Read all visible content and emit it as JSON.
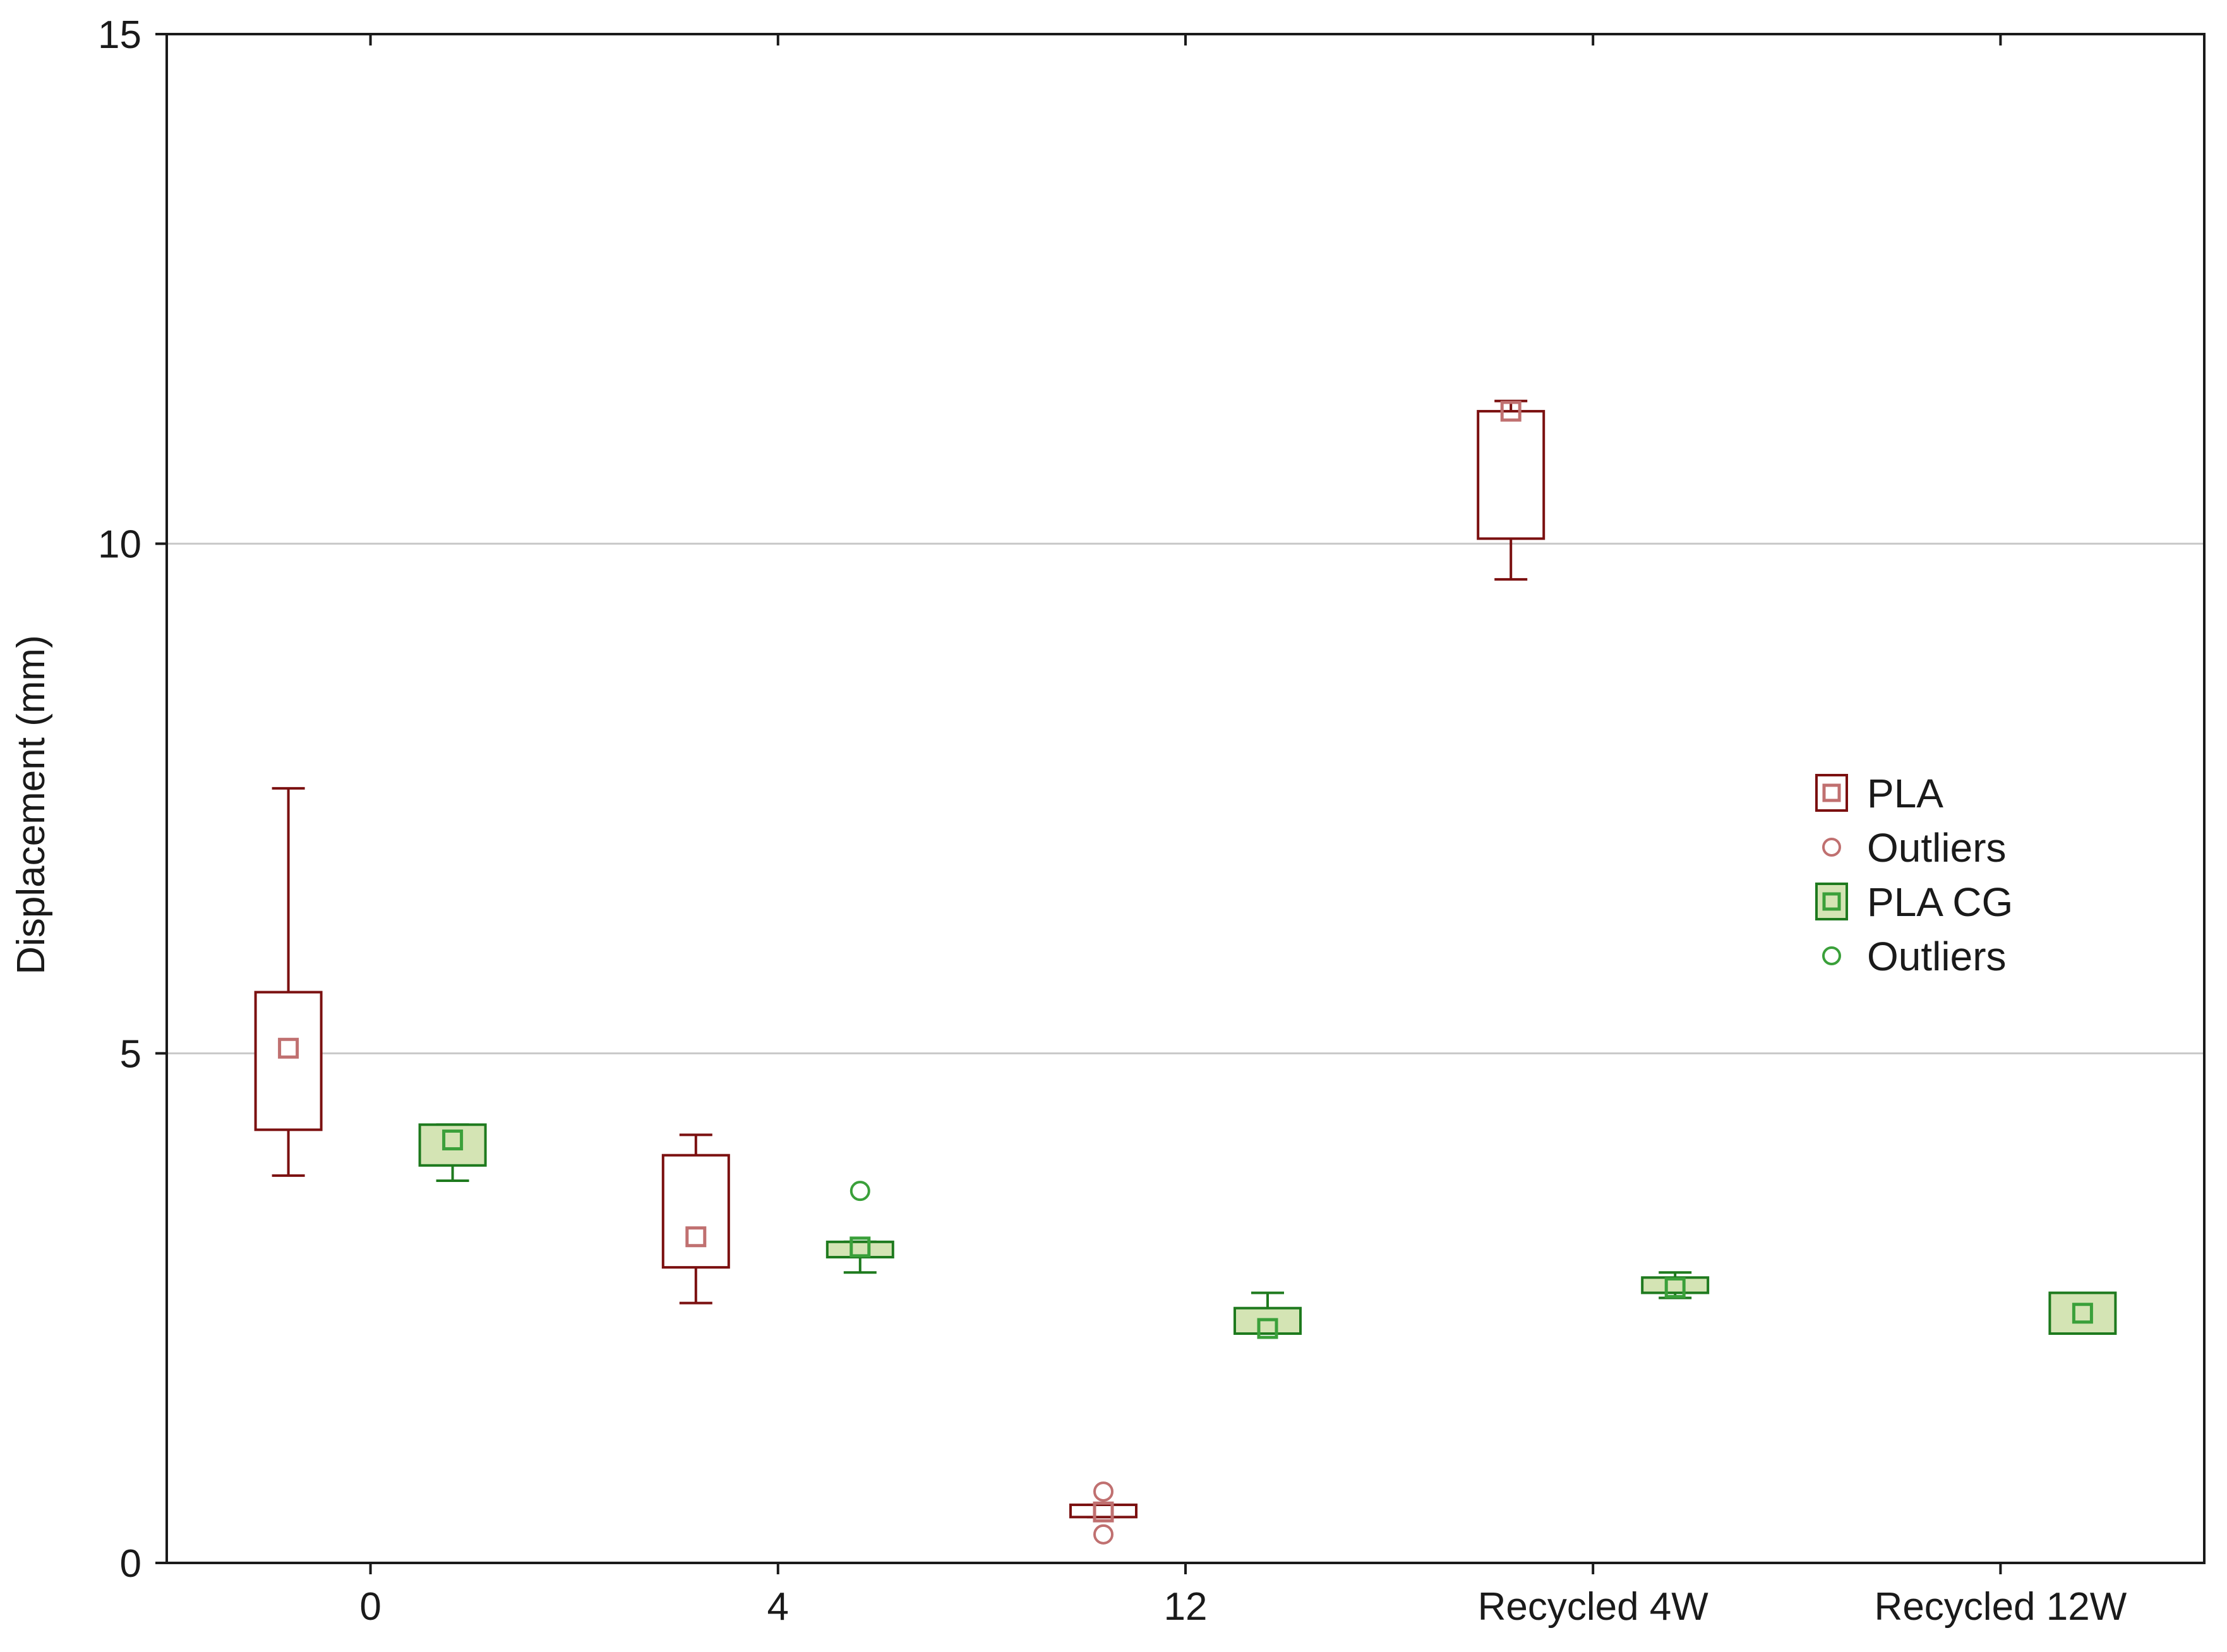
{
  "chart_data": {
    "type": "boxplot",
    "title": "",
    "xlabel": "",
    "ylabel": "Displacement (mm)",
    "ylim": [
      0,
      15
    ],
    "yticks": [
      0,
      5,
      10,
      15
    ],
    "ytick_labels": [
      "0",
      "5",
      "10",
      "15"
    ],
    "grid": "horizontal at 5 and 10",
    "legend_position": "right",
    "categories": [
      "0",
      "4",
      "12",
      "Recycled 4W",
      "Recycled 12W"
    ],
    "series": [
      {
        "name": "PLA",
        "color": "#7b1010",
        "fill": "#ffffff",
        "marker_color": "#c07070",
        "boxes": [
          {
            "category": "0",
            "whisker_low": 3.8,
            "q1": 4.25,
            "median": 5.05,
            "q3": 5.6,
            "whisker_high": 7.6,
            "outliers": []
          },
          {
            "category": "4",
            "whisker_low": 2.55,
            "q1": 2.9,
            "median": 3.2,
            "q3": 4.0,
            "whisker_high": 4.2,
            "outliers": []
          },
          {
            "category": "12",
            "whisker_low": 0.45,
            "q1": 0.45,
            "median": 0.5,
            "q3": 0.57,
            "whisker_high": 0.57,
            "outliers": [
              0.7,
              0.28
            ]
          },
          {
            "category": "Recycled 4W",
            "whisker_low": 9.65,
            "q1": 10.05,
            "median": 11.3,
            "q3": 11.3,
            "whisker_high": 11.4,
            "outliers": []
          }
        ]
      },
      {
        "name": "PLA CG",
        "color": "#1e7a1e",
        "fill": "#d4e4b4",
        "marker_color": "#3aa03a",
        "boxes": [
          {
            "category": "0",
            "whisker_low": 3.75,
            "q1": 3.9,
            "median": 4.15,
            "q3": 4.3,
            "whisker_high": 4.3,
            "outliers": []
          },
          {
            "category": "4",
            "whisker_low": 2.85,
            "q1": 3.0,
            "median": 3.1,
            "q3": 3.15,
            "whisker_high": 3.15,
            "outliers": [
              3.65
            ]
          },
          {
            "category": "12",
            "whisker_low": 2.25,
            "q1": 2.25,
            "median": 2.3,
            "q3": 2.5,
            "whisker_high": 2.65,
            "outliers": []
          },
          {
            "category": "Recycled 4W",
            "whisker_low": 2.6,
            "q1": 2.65,
            "median": 2.7,
            "q3": 2.8,
            "whisker_high": 2.85,
            "outliers": []
          },
          {
            "category": "Recycled 12W",
            "whisker_low": 2.25,
            "q1": 2.25,
            "median": 2.45,
            "q3": 2.65,
            "whisker_high": 2.65,
            "outliers": []
          }
        ]
      }
    ],
    "legend": [
      {
        "label": "PLA",
        "kind": "box",
        "series": "PLA"
      },
      {
        "label": "Outliers",
        "kind": "outlier",
        "series": "PLA"
      },
      {
        "label": "PLA CG",
        "kind": "box",
        "series": "PLA CG"
      },
      {
        "label": "Outliers",
        "kind": "outlier",
        "series": "PLA CG"
      }
    ],
    "gridline_color": "#c8c8c8"
  }
}
